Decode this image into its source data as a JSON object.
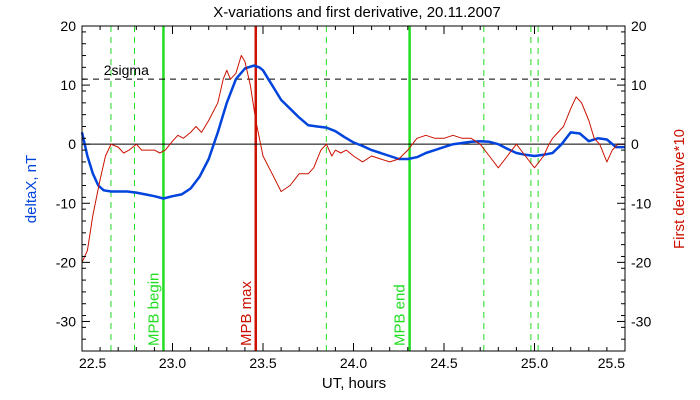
{
  "chart_data": {
    "type": "line",
    "title": "X-variations and first derivative, 20.11.2007",
    "xlabel": "UT, hours",
    "ylabel_left": "deltaX, nT",
    "ylabel_right": "First derivative*10",
    "xlim": [
      22.5,
      25.5
    ],
    "ylim": [
      -35,
      20
    ],
    "x_ticks": [
      "22.5",
      "23.0",
      "23.5",
      "24.0",
      "24.5",
      "25.0",
      "25.5"
    ],
    "y_ticks": [
      "20",
      "10",
      "0",
      "-10",
      "-20",
      "-30"
    ],
    "grid": false,
    "threshold": {
      "label": "2sigma",
      "y": 11
    },
    "zero_line": 0,
    "colors": {
      "deltaX": "#0044dd",
      "derivative": "#cc1100",
      "mpb": "#22dd22",
      "max": "#cc1100",
      "axis": "#000000"
    },
    "series": [
      {
        "name": "deltaX, nT",
        "axis": "left",
        "x": [
          22.5,
          22.53,
          22.56,
          22.59,
          22.62,
          22.66,
          22.7,
          22.75,
          22.8,
          22.85,
          22.9,
          22.95,
          23.0,
          23.05,
          23.1,
          23.15,
          23.2,
          23.25,
          23.3,
          23.35,
          23.4,
          23.45,
          23.48,
          23.5,
          23.53,
          23.57,
          23.6,
          23.65,
          23.7,
          23.75,
          23.8,
          23.85,
          23.9,
          23.95,
          24.0,
          24.05,
          24.1,
          24.15,
          24.2,
          24.25,
          24.3,
          24.35,
          24.4,
          24.45,
          24.5,
          24.55,
          24.6,
          24.65,
          24.7,
          24.75,
          24.8,
          24.85,
          24.9,
          24.95,
          25.0,
          25.05,
          25.1,
          25.15,
          25.2,
          25.25,
          25.3,
          25.35,
          25.4,
          25.45,
          25.5
        ],
        "values": [
          2,
          -2,
          -5,
          -7,
          -7.8,
          -8,
          -8,
          -8,
          -8.2,
          -8.5,
          -8.8,
          -9.2,
          -8.8,
          -8.5,
          -7.5,
          -5.5,
          -2.5,
          2,
          7,
          11,
          12.8,
          13.3,
          13,
          12.5,
          11,
          9,
          7.5,
          6,
          4.5,
          3.2,
          3,
          2.8,
          2.2,
          1.2,
          0.3,
          -0.3,
          -1,
          -1.5,
          -2,
          -2.5,
          -2.5,
          -2.2,
          -1.5,
          -1,
          -0.5,
          0,
          0.2,
          0.4,
          0.5,
          0.4,
          0,
          -0.8,
          -1.5,
          -1.8,
          -2,
          -1.8,
          -1.5,
          0,
          2,
          1.8,
          0.5,
          1,
          0.8,
          -0.5,
          -0.5
        ]
      },
      {
        "name": "First derivative*10",
        "axis": "right",
        "x": [
          22.5,
          22.53,
          22.56,
          22.6,
          22.63,
          22.66,
          22.7,
          22.73,
          22.76,
          22.8,
          22.83,
          22.86,
          22.9,
          22.93,
          22.96,
          23.0,
          23.03,
          23.06,
          23.1,
          23.13,
          23.16,
          23.2,
          23.25,
          23.28,
          23.3,
          23.32,
          23.35,
          23.38,
          23.4,
          23.43,
          23.46,
          23.5,
          23.55,
          23.6,
          23.65,
          23.7,
          23.75,
          23.78,
          23.82,
          23.85,
          23.88,
          23.9,
          23.93,
          23.96,
          24.0,
          24.05,
          24.1,
          24.15,
          24.2,
          24.25,
          24.3,
          24.35,
          24.4,
          24.45,
          24.5,
          24.55,
          24.6,
          24.65,
          24.7,
          24.75,
          24.8,
          24.85,
          24.9,
          24.95,
          25.0,
          25.05,
          25.08,
          25.1,
          25.13,
          25.16,
          25.2,
          25.23,
          25.26,
          25.3,
          25.33,
          25.36,
          25.4,
          25.43,
          25.46,
          25.5
        ],
        "values": [
          -20,
          -18,
          -12,
          -6,
          -2,
          0,
          -0.5,
          -1.5,
          -1,
          0,
          -1,
          -1,
          -1,
          -1.5,
          -1,
          0.5,
          1.5,
          1,
          2,
          3,
          2,
          4,
          7,
          11,
          12.5,
          11,
          12,
          15,
          14,
          10,
          4,
          -2,
          -5,
          -8,
          -7,
          -5,
          -5,
          -4,
          -1,
          0,
          -2,
          -1,
          -1.5,
          -1,
          -2,
          -3,
          -2,
          -2.5,
          -3,
          -2.5,
          -1,
          1,
          1.5,
          1,
          1,
          1.5,
          1,
          1,
          0,
          -2,
          -4,
          -2,
          0,
          -2,
          -4,
          -2,
          0,
          1,
          2,
          3,
          6,
          8,
          7,
          4,
          1,
          0,
          -3,
          -1,
          0,
          0
        ]
      }
    ],
    "markers": [
      {
        "label": "MPB begin",
        "x": 22.95,
        "color": "#22dd22",
        "style": "solid"
      },
      {
        "label": "MPB max",
        "x": 23.46,
        "color": "#cc1100",
        "style": "solid"
      },
      {
        "label": "MPB end",
        "x": 24.31,
        "color": "#22dd22",
        "style": "solid"
      }
    ],
    "dashed_lines_x": [
      22.66,
      22.79,
      23.85,
      24.72,
      24.98,
      25.02
    ]
  }
}
